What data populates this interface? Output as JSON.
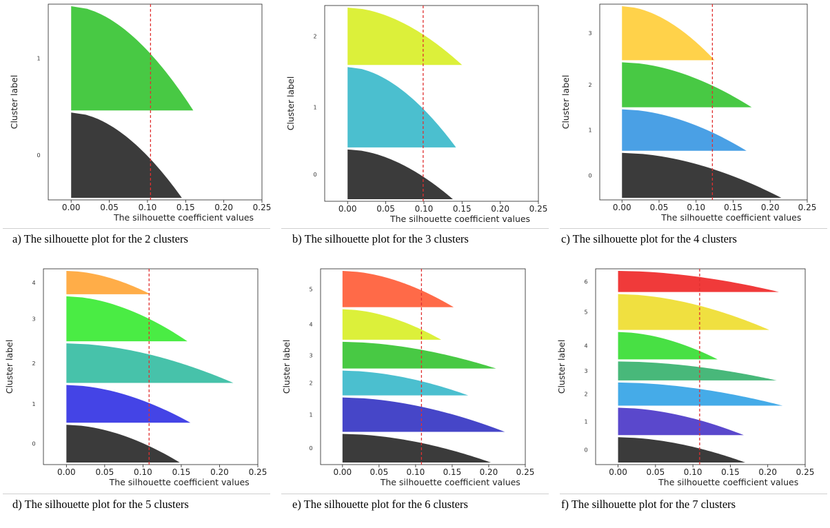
{
  "captions": [
    "a) The silhouette plot for the 2 clusters",
    "b) The silhouette plot for the 3 clusters",
    "c) The silhouette plot for the 4 clusters",
    "d) The silhouette plot for the 5 clusters",
    "e) The silhouette plot for the 6 clusters",
    "f) The silhouette plot for the 7 clusters"
  ],
  "chart_data": [
    {
      "type": "area",
      "xlabel": "The silhouette coefficient values",
      "ylabel": "Cluster label",
      "xlim": [
        -0.03,
        0.25
      ],
      "xticks": [
        "0.00",
        "0.05",
        "0.10",
        "0.15",
        "0.20",
        "0.25"
      ],
      "avg_silhouette": 0.104,
      "clusters": [
        {
          "label": "0",
          "color": "#3b3b3b",
          "max": 0.145,
          "size": 45,
          "curve": 0.55
        },
        {
          "label": "1",
          "color": "#48c944",
          "max": 0.16,
          "size": 55,
          "curve": 0.55
        }
      ]
    },
    {
      "type": "area",
      "xlabel": "The silhouette coefficient values",
      "ylabel": "Cluster label",
      "xlim": [
        -0.03,
        0.25
      ],
      "xticks": [
        "0.00",
        "0.05",
        "0.10",
        "0.15",
        "0.20",
        "0.25"
      ],
      "avg_silhouette": 0.099,
      "clusters": [
        {
          "label": "0",
          "color": "#3b3b3b",
          "max": 0.138,
          "size": 26,
          "curve": 0.55
        },
        {
          "label": "1",
          "color": "#4bbfcf",
          "max": 0.142,
          "size": 42,
          "curve": 0.55
        },
        {
          "label": "2",
          "color": "#dcf03a",
          "max": 0.15,
          "size": 30,
          "curve": 0.55
        }
      ]
    },
    {
      "type": "area",
      "xlabel": "The silhouette coefficient values",
      "ylabel": "Cluster label",
      "xlim": [
        -0.03,
        0.25
      ],
      "xticks": [
        "0.00",
        "0.05",
        "0.10",
        "0.15",
        "0.20",
        "0.25"
      ],
      "avg_silhouette": 0.122,
      "clusters": [
        {
          "label": "0",
          "color": "#3b3b3b",
          "max": 0.215,
          "size": 25,
          "curve": 0.55
        },
        {
          "label": "1",
          "color": "#4aa0e5",
          "max": 0.168,
          "size": 23,
          "curve": 0.55
        },
        {
          "label": "2",
          "color": "#48c944",
          "max": 0.175,
          "size": 25,
          "curve": 0.55
        },
        {
          "label": "3",
          "color": "#ffd24a",
          "max": 0.125,
          "size": 30,
          "curve": 0.55
        }
      ]
    },
    {
      "type": "area",
      "xlabel": "The silhouette coefficient values",
      "ylabel": "Cluster label",
      "xlim": [
        -0.03,
        0.25
      ],
      "xticks": [
        "0.00",
        "0.05",
        "0.10",
        "0.15",
        "0.20",
        "0.25"
      ],
      "avg_silhouette": 0.108,
      "clusters": [
        {
          "label": "0",
          "color": "#3b3b3b",
          "max": 0.148,
          "size": 21,
          "curve": 0.55
        },
        {
          "label": "1",
          "color": "#4444e6",
          "max": 0.162,
          "size": 21,
          "curve": 0.55
        },
        {
          "label": "2",
          "color": "#47c2aa",
          "max": 0.218,
          "size": 22,
          "curve": 0.55
        },
        {
          "label": "3",
          "color": "#4aec44",
          "max": 0.158,
          "size": 25,
          "curve": 0.55
        },
        {
          "label": "4",
          "color": "#ffad48",
          "max": 0.11,
          "size": 13,
          "curve": 0.55
        }
      ]
    },
    {
      "type": "area",
      "xlabel": "The silhouette coefficient values",
      "ylabel": "Cluster label",
      "xlim": [
        -0.03,
        0.25
      ],
      "xticks": [
        "0.00",
        "0.05",
        "0.10",
        "0.15",
        "0.20",
        "0.25"
      ],
      "avg_silhouette": 0.108,
      "clusters": [
        {
          "label": "0",
          "color": "#3b3b3b",
          "max": 0.203,
          "size": 15,
          "curve": 0.55
        },
        {
          "label": "1",
          "color": "#4646c8",
          "max": 0.222,
          "size": 18,
          "curve": 0.55
        },
        {
          "label": "2",
          "color": "#4bbfcf",
          "max": 0.172,
          "size": 13,
          "curve": 0.55
        },
        {
          "label": "3",
          "color": "#48c944",
          "max": 0.21,
          "size": 14,
          "curve": 0.55
        },
        {
          "label": "4",
          "color": "#dcf03a",
          "max": 0.135,
          "size": 16,
          "curve": 0.55
        },
        {
          "label": "5",
          "color": "#ff6a48",
          "max": 0.152,
          "size": 19,
          "curve": 0.55
        }
      ]
    },
    {
      "type": "area",
      "xlabel": "The silhouette coefficient values",
      "ylabel": "Cluster label",
      "xlim": [
        -0.03,
        0.25
      ],
      "xticks": [
        "0.00",
        "0.05",
        "0.10",
        "0.15",
        "0.20",
        "0.25"
      ],
      "avg_silhouette": 0.109,
      "clusters": [
        {
          "label": "0",
          "color": "#3b3b3b",
          "max": 0.17,
          "size": 12,
          "curve": 0.55
        },
        {
          "label": "1",
          "color": "#5a48cc",
          "max": 0.168,
          "size": 13,
          "curve": 0.55
        },
        {
          "label": "2",
          "color": "#45abe8",
          "max": 0.22,
          "size": 11,
          "curve": 0.55
        },
        {
          "label": "3",
          "color": "#48b87a",
          "max": 0.212,
          "size": 9,
          "curve": 0.55
        },
        {
          "label": "4",
          "color": "#48e044",
          "max": 0.133,
          "size": 13,
          "curve": 0.55
        },
        {
          "label": "5",
          "color": "#f0e040",
          "max": 0.202,
          "size": 17,
          "curve": 0.55
        },
        {
          "label": "6",
          "color": "#f03a3a",
          "max": 0.215,
          "size": 10,
          "curve": 0.55
        }
      ]
    }
  ]
}
